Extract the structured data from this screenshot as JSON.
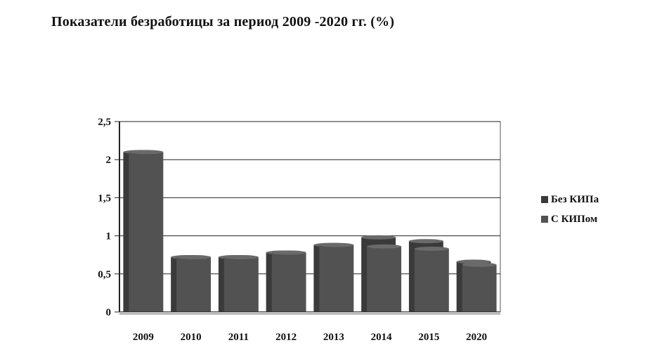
{
  "chart_data": {
    "type": "bar",
    "title": "Показатели безработицы за период 2009 -2020 гг. (%)",
    "categories": [
      "2009",
      "2010",
      "2011",
      "2012",
      "2013",
      "2014",
      "2015",
      "2020"
    ],
    "series": [
      {
        "name": "Без КИПа",
        "values": [
          2.1,
          0.72,
          0.72,
          0.78,
          0.88,
          0.98,
          0.93,
          0.66
        ],
        "color": "#3a3a3a"
      },
      {
        "name": "С КИПом",
        "values": [
          2.1,
          0.72,
          0.72,
          0.78,
          0.88,
          0.86,
          0.83,
          0.62
        ],
        "color": "#525252"
      }
    ],
    "y_ticks": [
      "0",
      "0,5",
      "1",
      "1,5",
      "2",
      "2,5"
    ],
    "ylim": [
      0,
      2.5
    ],
    "grid": true,
    "legend_position": "right"
  }
}
